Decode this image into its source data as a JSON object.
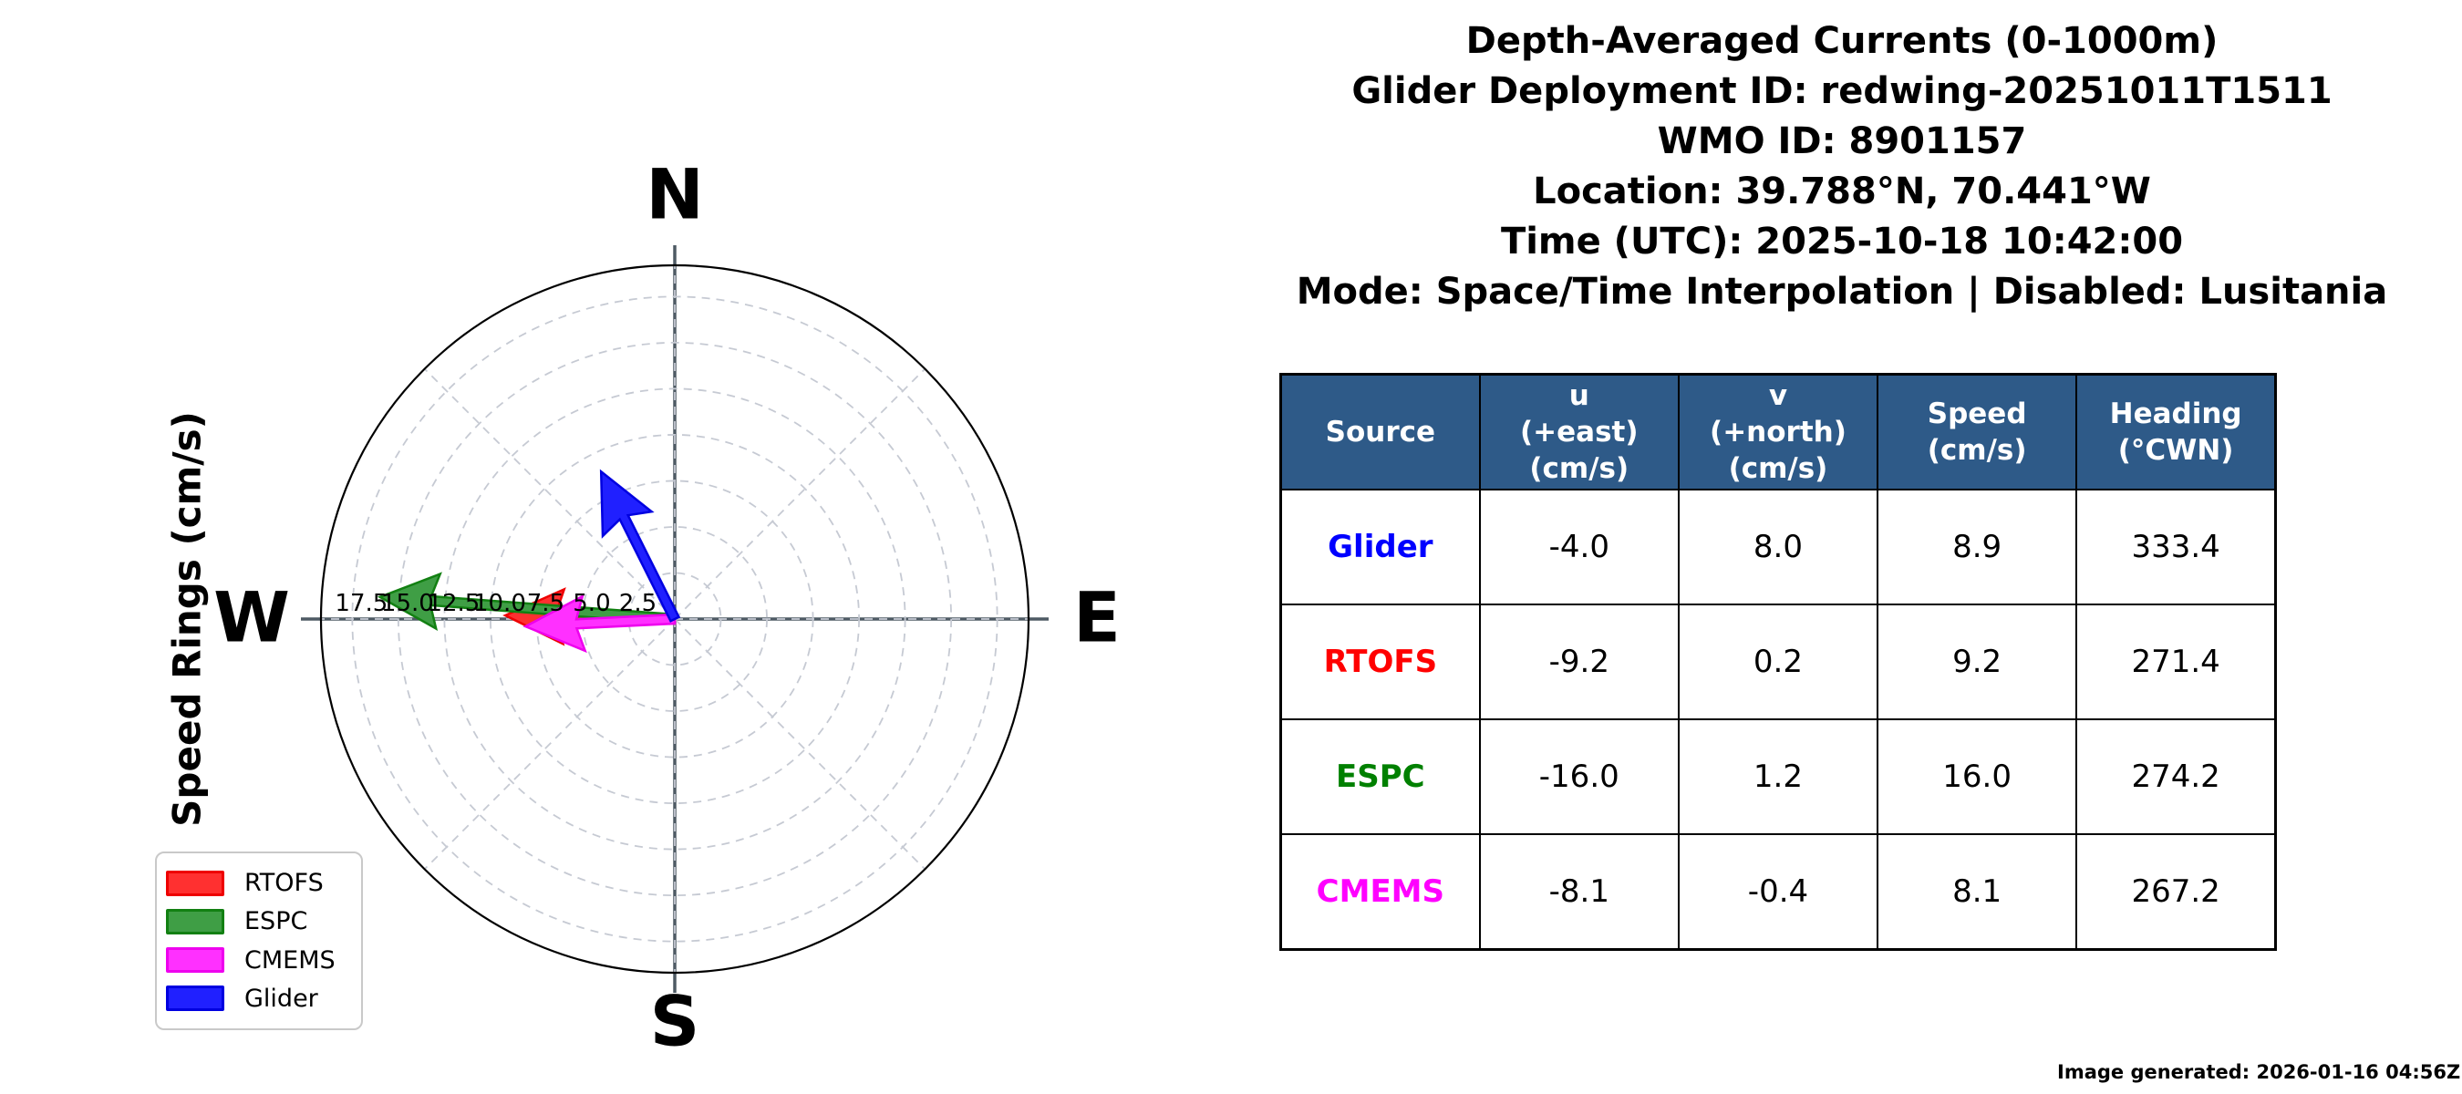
{
  "title_lines": [
    "Depth-Averaged Currents (0-1000m)",
    "Glider Deployment ID: redwing-20251011T1511",
    "WMO ID: 8901157",
    "Location: 39.788°N, 70.441°W",
    "Time (UTC): 2025-10-18 10:42:00",
    "Mode: Space/Time Interpolation | Disabled: Lusitania"
  ],
  "compass": {
    "ylabel": "Speed Rings (cm/s)",
    "cardinals": {
      "north": "N",
      "east": "E",
      "south": "S",
      "west": "W"
    },
    "ring_label_values": [
      "2.5",
      "5.0",
      "7.5",
      "10.0",
      "12.5",
      "15.0",
      "17.5"
    ],
    "colors": {
      "grid": "#c6cad3",
      "axis": "#4e5a64",
      "outer_circle": "#000000",
      "cardinal_text": "#000000"
    }
  },
  "chart_data": {
    "type": "quiver-compass",
    "title": "Depth-Averaged Currents (0-1000m)",
    "radial_unit": "cm/s",
    "ring_interval": 2.5,
    "rings": [
      2.5,
      5.0,
      7.5,
      10.0,
      12.5,
      15.0,
      17.5
    ],
    "rmax": 19.2,
    "spoke_step_deg": 45,
    "legend_position": "lower-left",
    "series": [
      {
        "name": "RTOFS",
        "u": -9.2,
        "v": 0.2,
        "speed": 9.2,
        "heading_cwn": 271.4,
        "fill": "#ff3030",
        "stroke": "#ee0000",
        "label_color": "#ff0000"
      },
      {
        "name": "ESPC",
        "u": -16.0,
        "v": 1.2,
        "speed": 16.0,
        "heading_cwn": 274.2,
        "fill": "#3f9e45",
        "stroke": "#128012",
        "label_color": "#008000"
      },
      {
        "name": "CMEMS",
        "u": -8.1,
        "v": -0.4,
        "speed": 8.1,
        "heading_cwn": 267.2,
        "fill": "#ff30ff",
        "stroke": "#ee00ee",
        "label_color": "#ff00ff"
      },
      {
        "name": "Glider",
        "u": -4.0,
        "v": 8.0,
        "speed": 8.9,
        "heading_cwn": 333.4,
        "fill": "#2020ff",
        "stroke": "#0000e0",
        "label_color": "#0000ff"
      }
    ]
  },
  "legend": {
    "items": [
      "RTOFS",
      "ESPC",
      "CMEMS",
      "Glider"
    ]
  },
  "table": {
    "header_bg": "#2e5a88",
    "headers": [
      [
        "Source"
      ],
      [
        "u",
        "(+east)",
        "(cm/s)"
      ],
      [
        "v",
        "(+north)",
        "(cm/s)"
      ],
      [
        "Speed",
        "(cm/s)"
      ],
      [
        "Heading",
        "(°CWN)"
      ]
    ],
    "rows": [
      {
        "source": "Glider",
        "values": [
          "-4.0",
          "8.0",
          "8.9",
          "333.4"
        ]
      },
      {
        "source": "RTOFS",
        "values": [
          "-9.2",
          "0.2",
          "9.2",
          "271.4"
        ]
      },
      {
        "source": "ESPC",
        "values": [
          "-16.0",
          "1.2",
          "16.0",
          "274.2"
        ]
      },
      {
        "source": "CMEMS",
        "values": [
          "-8.1",
          "-0.4",
          "8.1",
          "267.2"
        ]
      }
    ]
  },
  "footer": {
    "generated": "Image generated: 2026-01-16 04:56Z"
  }
}
